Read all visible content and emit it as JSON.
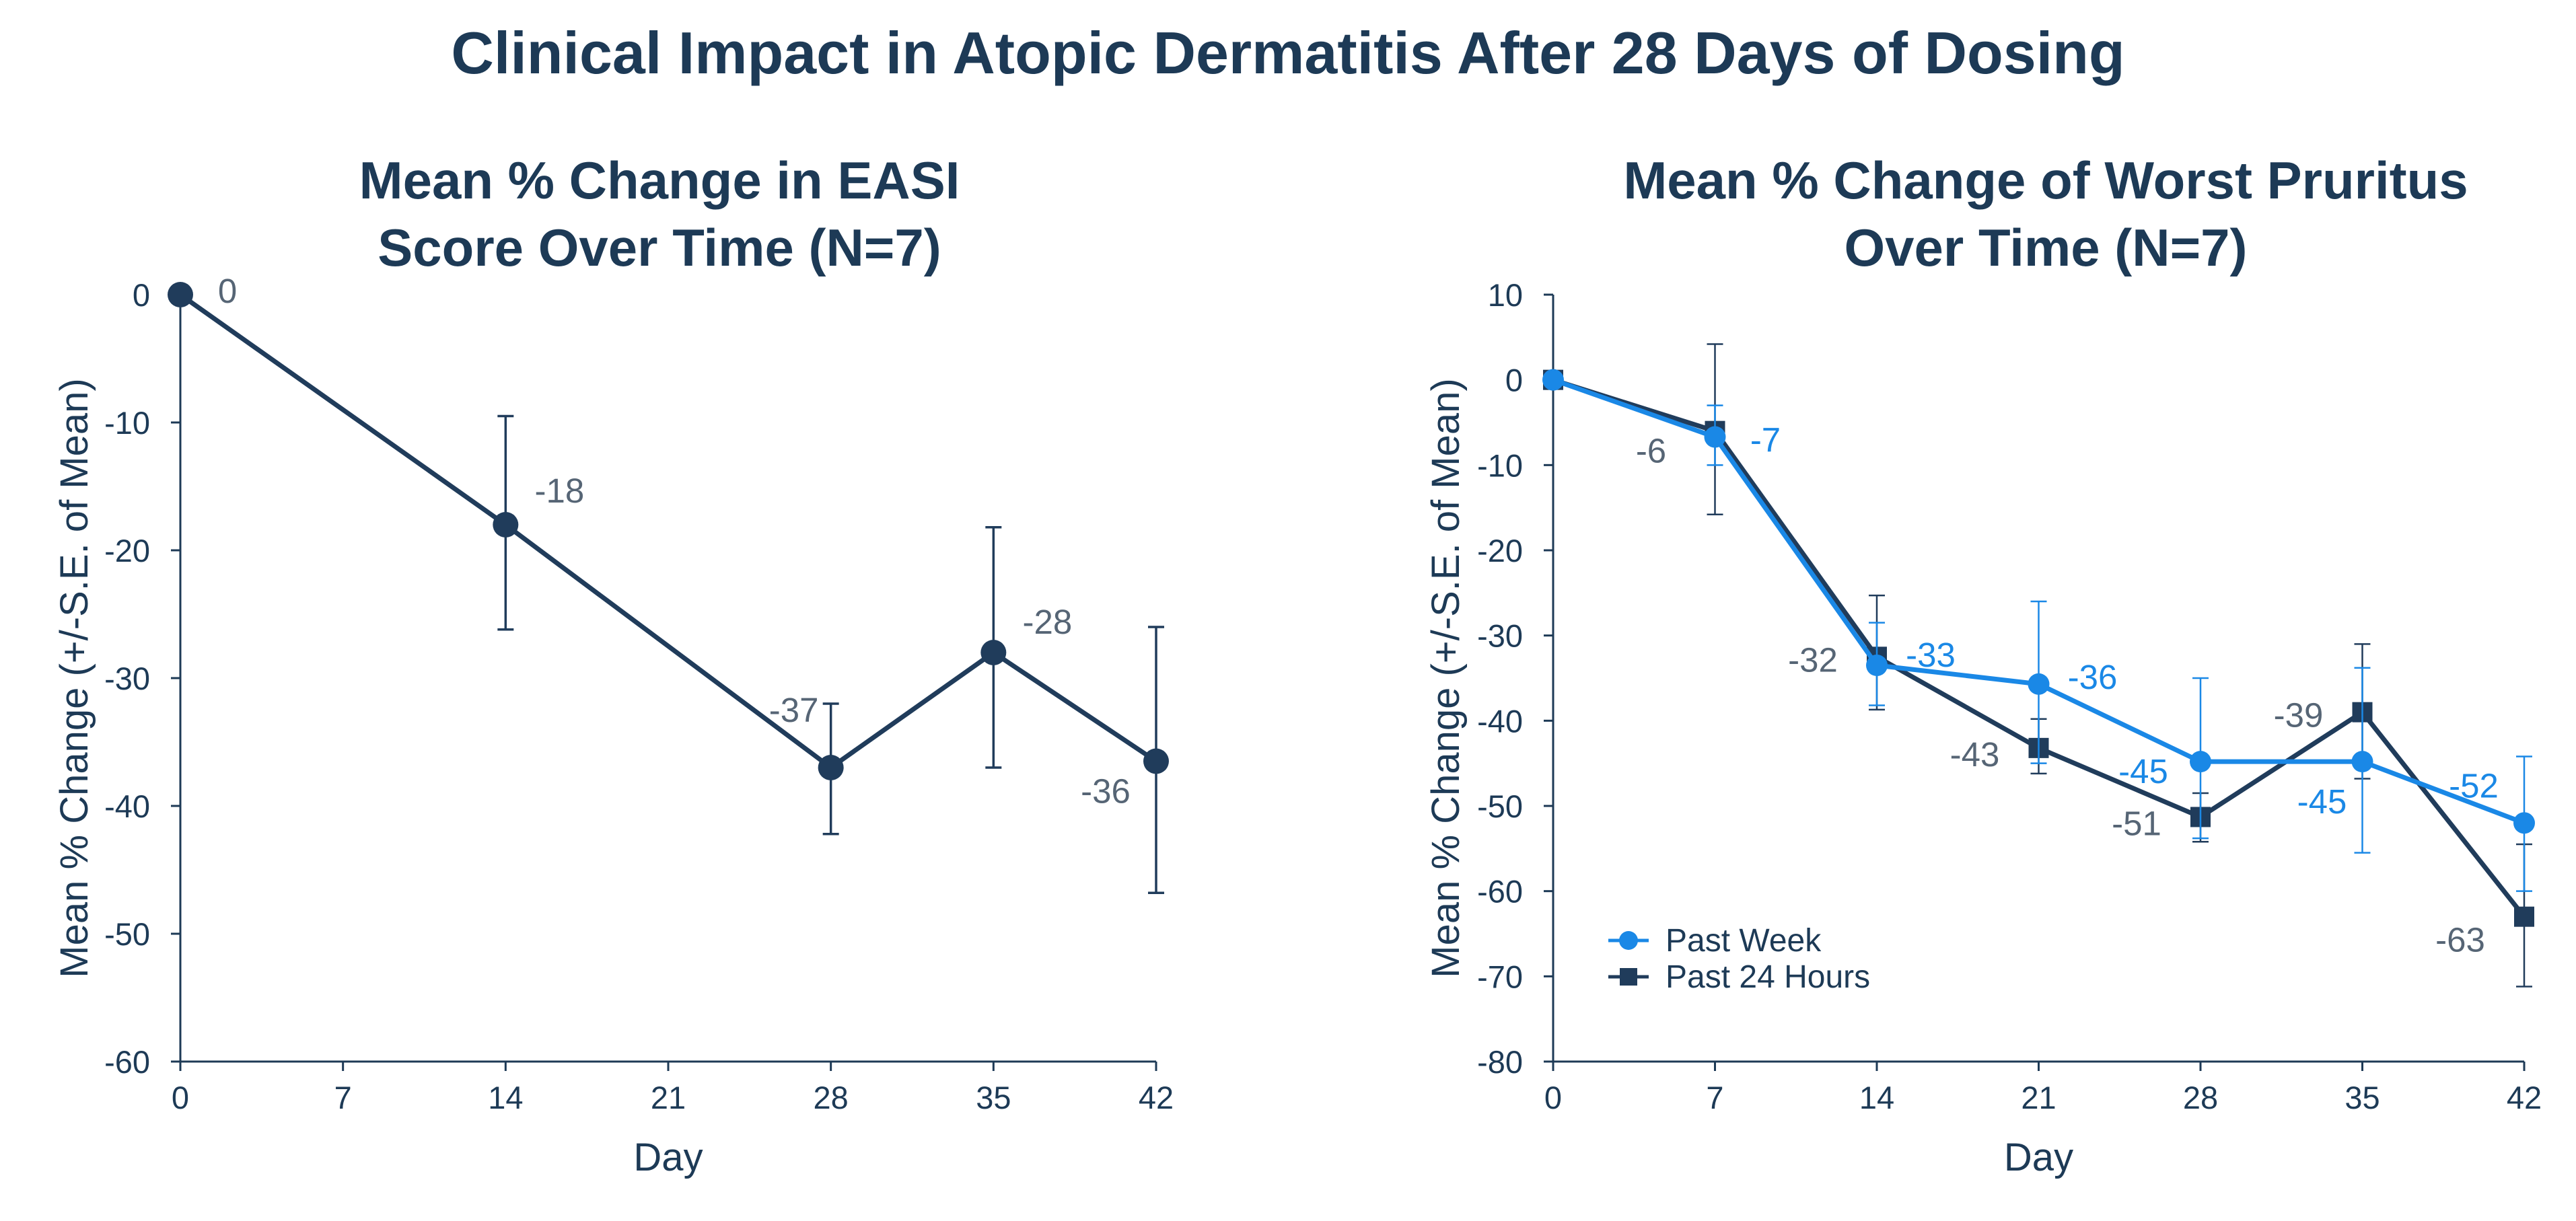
{
  "title": "Clinical Impact in Atopic Dermatitis After 28 Days of Dosing",
  "colors": {
    "navy": "#203c5b",
    "blue": "#1a88e6",
    "text": "#1d3a56",
    "label_gray": "#566575"
  },
  "chart_data": [
    {
      "type": "line",
      "title_lines": [
        "Mean % Change in EASI",
        "Score Over Time (N=7)"
      ],
      "xlabel": "Day",
      "ylabel": "Mean % Change (+/-S.E. of Mean)",
      "xlim": [
        0,
        42
      ],
      "ylim": [
        -60,
        0
      ],
      "x_ticks": [
        0,
        7,
        14,
        21,
        28,
        35,
        42
      ],
      "y_ticks": [
        0,
        -10,
        -20,
        -30,
        -40,
        -50,
        -60
      ],
      "series": [
        {
          "marker": "circle",
          "color": "#203c5b",
          "x": [
            0,
            14,
            28,
            35,
            42
          ],
          "y": [
            0,
            -18,
            -37,
            -28,
            -36.5
          ],
          "err_low": [
            0,
            -26.2,
            -42.2,
            -37.0,
            -46.8
          ],
          "err_high": [
            0,
            -9.5,
            -32.0,
            -18.2,
            -26.0
          ],
          "labels": [
            "0",
            "-18",
            "-37",
            "-28",
            "-36"
          ],
          "label_offsets": [
            [
              70,
              -5
            ],
            [
              80,
              -50
            ],
            [
              -55,
              -85
            ],
            [
              80,
              -45
            ],
            [
              -75,
              45
            ]
          ]
        }
      ],
      "grid": false,
      "legend": null
    },
    {
      "type": "line",
      "title_lines": [
        "Mean % Change of Worst Pruritus",
        "Over Time (N=7)"
      ],
      "xlabel": "Day",
      "ylabel": "Mean % Change (+/-S.E. of Mean)",
      "xlim": [
        0,
        42
      ],
      "ylim": [
        -80,
        10
      ],
      "x_ticks": [
        0,
        7,
        14,
        21,
        28,
        35,
        42
      ],
      "y_ticks": [
        10,
        0,
        -10,
        -20,
        -30,
        -40,
        -50,
        -60,
        -70,
        -80
      ],
      "series": [
        {
          "name": "Past 24 Hours",
          "marker": "square",
          "color": "#203c5b",
          "x": [
            0,
            7,
            14,
            21,
            28,
            35,
            42
          ],
          "y": [
            0,
            -6,
            -32.5,
            -43.2,
            -51.3,
            -39,
            -63
          ],
          "err_low": [
            0,
            -15.8,
            -38.7,
            -46.2,
            -54.2,
            -46.8,
            -71.2
          ],
          "err_high": [
            0,
            4.2,
            -25.3,
            -39.8,
            -48.5,
            -31.0,
            -54.5
          ],
          "labels": [
            "-6",
            "-32",
            "-43",
            "-51",
            "-39",
            "-63"
          ],
          "label_points": [
            1,
            2,
            3,
            4,
            5,
            6
          ],
          "label_offsets": [
            [
              -95,
              30
            ],
            [
              -95,
              5
            ],
            [
              -95,
              10
            ],
            [
              -95,
              10
            ],
            [
              -95,
              5
            ],
            [
              -95,
              35
            ]
          ]
        },
        {
          "name": "Past Week",
          "marker": "circle",
          "color": "#1a88e6",
          "x": [
            0,
            7,
            14,
            21,
            28,
            35,
            42
          ],
          "y": [
            0,
            -6.7,
            -33.5,
            -35.7,
            -44.8,
            -44.8,
            -52
          ],
          "err_low": [
            0,
            -10.0,
            -38.2,
            -45.0,
            -53.8,
            -55.5,
            -60.0
          ],
          "err_high": [
            0,
            -3.0,
            -28.5,
            -26.0,
            -35.0,
            -33.8,
            -44.2
          ],
          "labels": [
            "-7",
            "-33",
            "-36",
            "-45",
            "-45",
            "-52"
          ],
          "label_points": [
            1,
            2,
            3,
            4,
            5,
            6
          ],
          "label_offsets": [
            [
              75,
              5
            ],
            [
              80,
              -15
            ],
            [
              80,
              -10
            ],
            [
              -85,
              15
            ],
            [
              -60,
              60
            ],
            [
              -75,
              -55
            ]
          ]
        }
      ],
      "grid": false,
      "legend": {
        "position": "bottom-left",
        "entries": [
          "Past Week",
          "Past 24 Hours"
        ]
      }
    }
  ]
}
